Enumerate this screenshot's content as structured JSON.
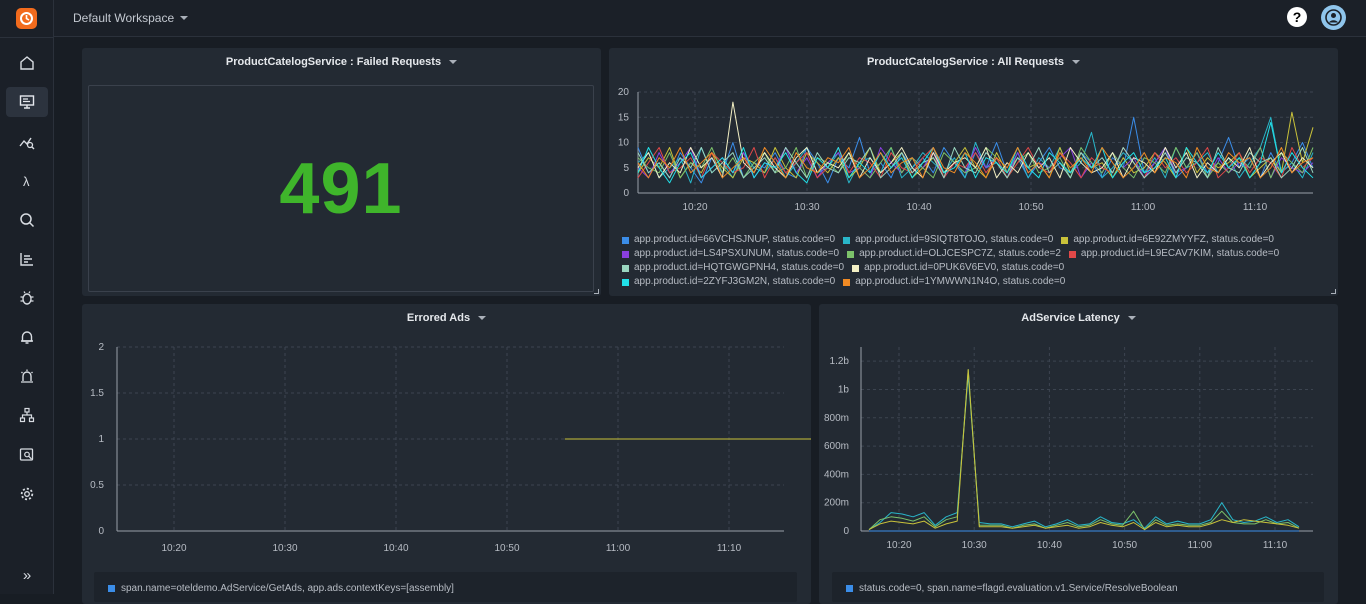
{
  "workspace": {
    "name": "Default Workspace"
  },
  "header": {
    "help_label": "?"
  },
  "sidebar": {
    "items": [
      {
        "name": "home-icon",
        "active": false
      },
      {
        "name": "dashboard-icon",
        "active": true
      },
      {
        "name": "metrics-icon",
        "active": false
      },
      {
        "name": "lambda-icon",
        "active": false
      },
      {
        "name": "search-icon",
        "active": false
      },
      {
        "name": "reports-icon",
        "active": false
      },
      {
        "name": "bug-icon",
        "active": false
      },
      {
        "name": "bell-icon",
        "active": false
      },
      {
        "name": "alarm-icon",
        "active": false
      },
      {
        "name": "hierarchy-icon",
        "active": false
      },
      {
        "name": "analytics-icon",
        "active": false
      },
      {
        "name": "gear-icon",
        "active": false
      }
    ],
    "expand_label": "»"
  },
  "panels": {
    "failed": {
      "title": "ProductCatelogService : Failed Requests",
      "value": "491",
      "value_color": "#3fb52b"
    },
    "all": {
      "title": "ProductCatelogService : All Requests"
    },
    "errored_ads": {
      "title": "Errored Ads",
      "legend": "span.name=oteldemo.AdService/GetAds, app.ads.contextKeys=[assembly]"
    },
    "latency": {
      "title": "AdService Latency",
      "legend": "status.code=0, span.name=flagd.evaluation.v1.Service/ResolveBoolean"
    }
  },
  "chart_data": [
    {
      "type": "line",
      "title": "ProductCatelogService : All Requests",
      "x_ticks": [
        "10:20",
        "10:30",
        "10:40",
        "10:50",
        "11:00",
        "11:10"
      ],
      "y_ticks": [
        "0",
        "5",
        "10",
        "15",
        "20"
      ],
      "ylim": [
        0,
        20
      ],
      "grid": true,
      "legend_position": "bottom",
      "series": [
        {
          "name": "app.product.id=66VCHSJNUP, status.code=0",
          "color": "#3b8de8",
          "values": [
            9,
            4,
            6,
            3,
            8,
            5,
            2,
            7,
            4,
            10,
            3,
            6,
            5,
            8,
            4,
            3,
            9,
            6,
            2,
            7,
            5,
            11,
            4,
            6,
            3,
            8,
            5,
            7,
            4,
            9,
            6,
            3,
            8,
            5,
            10,
            4,
            7,
            3,
            6,
            9,
            5,
            4,
            8,
            6,
            3,
            7,
            5,
            15,
            4,
            6,
            9,
            3,
            5,
            8,
            4,
            6,
            11,
            5,
            7,
            3,
            8,
            4,
            6,
            10,
            5
          ]
        },
        {
          "name": "app.product.id=9SIQT8TOJO, status.code=0",
          "color": "#29b6c9",
          "values": [
            6,
            8,
            3,
            5,
            7,
            2,
            9,
            4,
            6,
            3,
            8,
            5,
            4,
            7,
            3,
            6,
            9,
            4,
            5,
            8,
            2,
            6,
            7,
            4,
            9,
            3,
            5,
            8,
            6,
            4,
            7,
            3,
            10,
            5,
            6,
            4,
            8,
            3,
            7,
            5,
            9,
            4,
            6,
            12,
            3,
            5,
            8,
            6,
            4,
            7,
            3,
            9,
            5,
            6,
            8,
            4,
            7,
            3,
            6,
            9,
            15,
            4,
            6,
            3,
            8
          ]
        },
        {
          "name": "app.product.id=6E92ZMYYFZ, status.code=0",
          "color": "#c9c23a",
          "values": [
            4,
            7,
            5,
            9,
            3,
            6,
            4,
            8,
            5,
            3,
            7,
            6,
            4,
            9,
            5,
            3,
            8,
            6,
            4,
            7,
            3,
            5,
            9,
            4,
            6,
            8,
            3,
            5,
            7,
            4,
            6,
            9,
            5,
            3,
            8,
            4,
            7,
            5,
            6,
            3,
            9,
            4,
            8,
            5,
            6,
            3,
            7,
            4,
            5,
            8,
            6,
            3,
            9,
            4,
            7,
            5,
            6,
            8,
            3,
            5,
            7,
            4,
            16,
            6,
            13
          ]
        },
        {
          "name": "app.product.id=LS4PSXUNUM, status.code=0",
          "color": "#8a3fe0",
          "values": [
            5,
            3,
            8,
            4,
            6,
            9,
            3,
            5,
            7,
            4,
            8,
            3,
            6,
            5,
            9,
            4,
            7,
            3,
            6,
            8,
            4,
            5,
            3,
            9,
            6,
            4,
            7,
            5,
            8,
            3,
            6,
            4,
            9,
            5,
            7,
            3,
            8,
            4,
            6,
            5,
            7,
            9,
            3,
            6,
            4,
            8,
            5,
            7,
            3,
            6,
            9,
            4,
            5,
            8,
            3,
            7,
            4,
            6,
            5,
            9,
            3,
            7,
            5,
            4,
            6
          ]
        },
        {
          "name": "app.product.id=OLJCESPC7Z, status.code=2",
          "color": "#7cc26a",
          "values": [
            7,
            5,
            4,
            8,
            3,
            6,
            5,
            9,
            4,
            7,
            3,
            6,
            8,
            4,
            5,
            9,
            3,
            7,
            6,
            4,
            8,
            5,
            3,
            6,
            9,
            4,
            7,
            5,
            3,
            8,
            6,
            4,
            5,
            9,
            7,
            3,
            6,
            8,
            4,
            5,
            7,
            3,
            9,
            6,
            4,
            8,
            5,
            3,
            7,
            6,
            4,
            9,
            5,
            8,
            3,
            6,
            4,
            7,
            5,
            9,
            3,
            8,
            6,
            4,
            9
          ]
        },
        {
          "name": "app.product.id=L9ECAV7KIM, status.code=0",
          "color": "#e04848",
          "values": [
            3,
            6,
            9,
            4,
            5,
            7,
            3,
            8,
            6,
            4,
            5,
            9,
            3,
            7,
            4,
            6,
            8,
            3,
            5,
            9,
            4,
            7,
            6,
            3,
            8,
            5,
            4,
            7,
            9,
            3,
            6,
            5,
            8,
            4,
            7,
            3,
            6,
            9,
            5,
            4,
            8,
            6,
            3,
            7,
            5,
            4,
            9,
            6,
            3,
            8,
            5,
            7,
            4,
            6,
            9,
            3,
            5,
            8,
            4,
            7,
            6,
            3,
            9,
            5,
            7
          ]
        },
        {
          "name": "app.product.id=HQTGWGPNH4, status.code=0",
          "color": "#9ad6c0",
          "values": [
            8,
            4,
            6,
            3,
            7,
            5,
            9,
            4,
            6,
            8,
            3,
            5,
            7,
            4,
            9,
            6,
            3,
            8,
            5,
            4,
            7,
            6,
            9,
            3,
            5,
            8,
            4,
            6,
            7,
            3,
            9,
            5,
            4,
            8,
            6,
            3,
            7,
            5,
            9,
            4,
            6,
            3,
            8,
            5,
            7,
            4,
            9,
            6,
            3,
            5,
            8,
            4,
            7,
            6,
            3,
            9,
            5,
            4,
            8,
            6,
            7,
            3,
            5,
            9,
            4
          ]
        },
        {
          "name": "app.product.id=0PUK6V6EV0, status.code=0",
          "color": "#f3f0c4",
          "values": [
            5,
            8,
            3,
            6,
            4,
            9,
            5,
            7,
            3,
            18,
            6,
            4,
            8,
            5,
            3,
            7,
            9,
            4,
            6,
            5,
            8,
            3,
            7,
            4,
            6,
            9,
            5,
            3,
            8,
            4,
            6,
            7,
            5,
            9,
            3,
            6,
            4,
            8,
            5,
            7,
            3,
            9,
            6,
            4,
            5,
            8,
            3,
            7,
            6,
            4,
            9,
            5,
            8,
            3,
            6,
            4,
            7,
            5,
            9,
            3,
            6,
            8,
            4,
            7,
            5
          ]
        },
        {
          "name": "app.product.id=2ZYFJ3GM2N, status.code=0",
          "color": "#21e0e8",
          "values": [
            4,
            9,
            5,
            2,
            6,
            8,
            3,
            5,
            7,
            4,
            9,
            3,
            6,
            5,
            8,
            4,
            2,
            7,
            5,
            9,
            3,
            6,
            4,
            8,
            5,
            7,
            3,
            6,
            9,
            4,
            5,
            8,
            3,
            7,
            6,
            4,
            9,
            5,
            3,
            8,
            6,
            4,
            7,
            5,
            9,
            3,
            6,
            8,
            4,
            5,
            7,
            3,
            9,
            6,
            4,
            8,
            5,
            7,
            3,
            6,
            14,
            4,
            8,
            5,
            3
          ]
        },
        {
          "name": "app.product.id=1YMWWN1N4O, status.code=0",
          "color": "#f08a24",
          "values": [
            6,
            3,
            7,
            5,
            9,
            4,
            6,
            8,
            3,
            5,
            7,
            4,
            9,
            6,
            3,
            8,
            5,
            4,
            7,
            6,
            9,
            3,
            5,
            8,
            4,
            6,
            7,
            3,
            9,
            5,
            4,
            8,
            6,
            3,
            7,
            5,
            9,
            4,
            6,
            3,
            8,
            5,
            7,
            4,
            9,
            6,
            3,
            5,
            8,
            4,
            7,
            6,
            3,
            9,
            5,
            4,
            8,
            6,
            7,
            3,
            5,
            9,
            4,
            6,
            7
          ]
        }
      ]
    },
    {
      "type": "line",
      "title": "Errored Ads",
      "x_ticks": [
        "10:20",
        "10:30",
        "10:40",
        "10:50",
        "11:00",
        "11:10"
      ],
      "y_ticks": [
        "0",
        "0.5",
        "1",
        "1.5",
        "2"
      ],
      "ylim": [
        0,
        2
      ],
      "grid": true,
      "series": [
        {
          "name": "span.name=oteldemo.AdService/GetAds, app.ads.contextKeys=[assembly]",
          "color": "#c9c23a",
          "x": [
            10.92,
            12.18
          ],
          "values": [
            1,
            1
          ]
        }
      ]
    },
    {
      "type": "line",
      "title": "AdService Latency",
      "x_ticks": [
        "10:20",
        "10:30",
        "10:40",
        "10:50",
        "11:00",
        "11:10"
      ],
      "y_ticks": [
        "0",
        "200m",
        "400m",
        "600m",
        "800m",
        "1b",
        "1.2b"
      ],
      "ylim": [
        0,
        1.3
      ],
      "grid": true,
      "series": [
        {
          "name": "status.code=0, span.name=flagd.evaluation.v1.Service/ResolveBoolean",
          "color": "#3b8de8",
          "values": [
            0,
            0,
            0,
            0,
            0,
            0,
            0,
            0,
            0,
            0,
            0,
            0,
            0,
            0,
            0,
            0,
            0,
            0,
            0,
            0,
            0,
            0,
            0,
            0,
            0,
            0,
            0,
            0,
            0,
            0,
            0,
            0,
            0,
            0,
            0,
            0,
            0,
            0,
            0,
            0
          ]
        },
        {
          "name": "",
          "color": "#29b6c9",
          "values": [
            0.01,
            0.06,
            0.13,
            0.12,
            0.1,
            0.13,
            0.04,
            0.1,
            0.13,
            1.1,
            0.06,
            0.05,
            0.05,
            0.03,
            0.05,
            0.07,
            0.03,
            0.05,
            0.08,
            0.04,
            0.05,
            0.1,
            0.06,
            0.05,
            0.08,
            0.02,
            0.1,
            0.05,
            0.07,
            0.05,
            0.05,
            0.08,
            0.2,
            0.08,
            0.06,
            0.07,
            0.1,
            0.06,
            0.08,
            0.03
          ]
        },
        {
          "name": "",
          "color": "#7cc26a",
          "values": [
            0.01,
            0.08,
            0.1,
            0.09,
            0.07,
            0.1,
            0.03,
            0.08,
            0.1,
            1.14,
            0.04,
            0.04,
            0.04,
            0.02,
            0.04,
            0.05,
            0.02,
            0.04,
            0.06,
            0.03,
            0.04,
            0.08,
            0.05,
            0.04,
            0.14,
            0.01,
            0.08,
            0.04,
            0.05,
            0.04,
            0.04,
            0.06,
            0.14,
            0.06,
            0.05,
            0.05,
            0.08,
            0.05,
            0.06,
            0.02
          ]
        },
        {
          "name": "",
          "color": "#c9c23a",
          "values": [
            0.01,
            0.05,
            0.07,
            0.06,
            0.05,
            0.07,
            0.02,
            0.05,
            0.07,
            1.14,
            0.03,
            0.03,
            0.03,
            0.02,
            0.03,
            0.04,
            0.02,
            0.03,
            0.04,
            0.02,
            0.03,
            0.06,
            0.04,
            0.03,
            0.06,
            0.01,
            0.06,
            0.03,
            0.04,
            0.03,
            0.03,
            0.05,
            0.08,
            0.06,
            0.08,
            0.07,
            0.06,
            0.05,
            0.04,
            0.02
          ]
        }
      ]
    }
  ]
}
